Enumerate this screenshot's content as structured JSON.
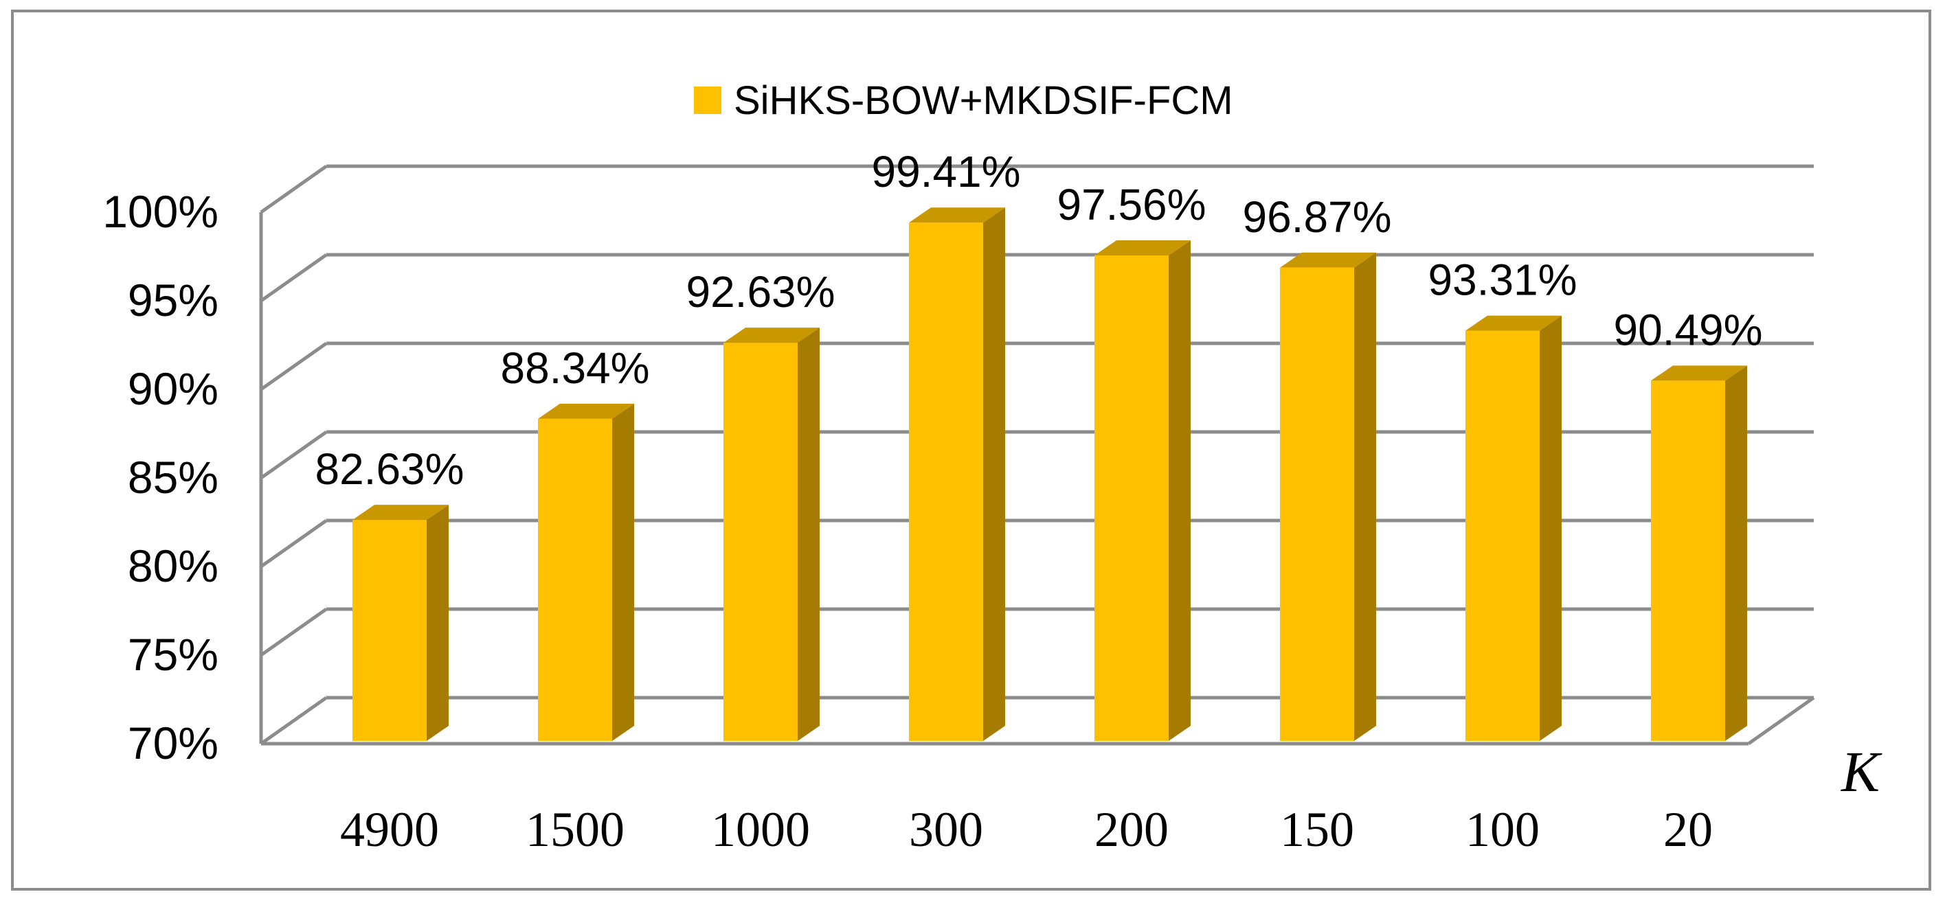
{
  "chart_data": {
    "type": "bar",
    "style": "3d-column",
    "categories": [
      "4900",
      "1500",
      "1000",
      "300",
      "200",
      "150",
      "100",
      "20"
    ],
    "series": [
      {
        "name": "SiHKS-BOW+MKDSIF-FCM",
        "values": [
          82.63,
          88.34,
          92.63,
          99.41,
          97.56,
          96.87,
          93.31,
          90.49
        ],
        "labels": [
          "82.63%",
          "88.34%",
          "92.63%",
          "99.41%",
          "97.56%",
          "96.87%",
          "93.31%",
          "90.49%"
        ],
        "color": "#FFC000",
        "side_color": "#A67C00",
        "top_color": "#C99700"
      }
    ],
    "xlabel": "K",
    "ylabel": "",
    "ylim": [
      70,
      100
    ],
    "yticks": [
      "70%",
      "75%",
      "80%",
      "85%",
      "90%",
      "95%",
      "100%"
    ],
    "ytick_values": [
      70,
      75,
      80,
      85,
      90,
      95,
      100
    ],
    "grid": true,
    "legend_position": "top-center",
    "gridline_color": "#8c8c8c"
  }
}
